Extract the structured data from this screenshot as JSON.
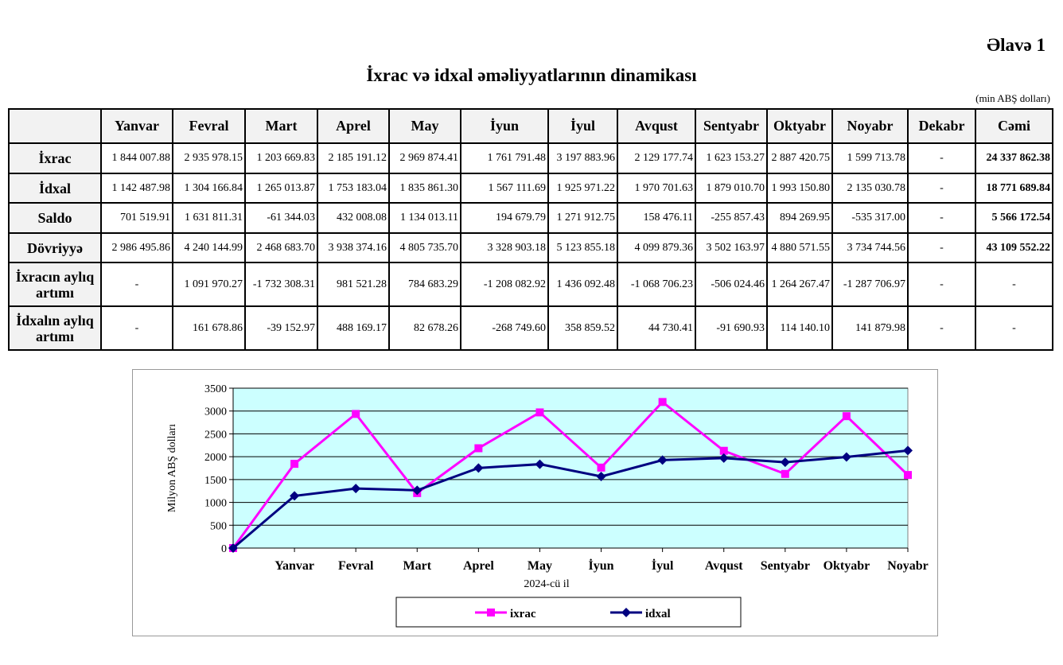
{
  "annex": "Əlavə 1",
  "title": "İxrac və idxal əməliyyatlarının dinamikası",
  "unit": "(min ABŞ dolları)",
  "table": {
    "headers": [
      "",
      "Yanvar",
      "Fevral",
      "Mart",
      "Aprel",
      "May",
      "İyun",
      "İyul",
      "Avqust",
      "Sentyabr",
      "Oktyabr",
      "Noyabr",
      "Dekabr",
      "Cəmi"
    ],
    "rows": [
      {
        "label": "İxrac",
        "cells": [
          "1 844 007.88",
          "2 935 978.15",
          "1 203 669.83",
          "2 185 191.12",
          "2 969 874.41",
          "1 761 791.48",
          "3 197 883.96",
          "2 129 177.74",
          "1 623 153.27",
          "2 887 420.75",
          "1 599 713.78",
          "-",
          "24 337 862.38"
        ]
      },
      {
        "label": "İdxal",
        "cells": [
          "1 142 487.98",
          "1 304 166.84",
          "1 265 013.87",
          "1 753 183.04",
          "1 835 861.30",
          "1 567 111.69",
          "1 925 971.22",
          "1 970 701.63",
          "1 879 010.70",
          "1 993 150.80",
          "2 135 030.78",
          "-",
          "18 771 689.84"
        ]
      },
      {
        "label": "Saldo",
        "cells": [
          "701 519.91",
          "1 631 811.31",
          "-61 344.03",
          "432 008.08",
          "1 134 013.11",
          "194 679.79",
          "1 271 912.75",
          "158 476.11",
          "-255 857.43",
          "894 269.95",
          "-535 317.00",
          "-",
          "5 566 172.54"
        ]
      },
      {
        "label": "Dövriyyə",
        "cells": [
          "2 986 495.86",
          "4 240 144.99",
          "2 468 683.70",
          "3 938 374.16",
          "4 805 735.70",
          "3 328 903.18",
          "5 123 855.18",
          "4 099 879.36",
          "3 502 163.97",
          "4 880 571.55",
          "3 734 744.56",
          "-",
          "43 109 552.22"
        ]
      },
      {
        "label": "İxracın aylıq artımı",
        "cells": [
          "-",
          "1 091 970.27",
          "-1 732 308.31",
          "981 521.28",
          "784 683.29",
          "-1 208 082.92",
          "1 436 092.48",
          "-1 068 706.23",
          "-506 024.46",
          "1 264 267.47",
          "-1 287 706.97",
          "-",
          "-"
        ]
      },
      {
        "label": "İdxalın aylıq artımı",
        "cells": [
          "-",
          "161 678.86",
          "-39 152.97",
          "488 169.17",
          "82 678.26",
          "-268 749.60",
          "358 859.52",
          "44 730.41",
          "-91 690.93",
          "114 140.10",
          "141 879.98",
          "-",
          "-"
        ]
      }
    ]
  },
  "chart_data": {
    "type": "line",
    "categories": [
      "",
      "Yanvar",
      "Fevral",
      "Mart",
      "Aprel",
      "May",
      "İyun",
      "İyul",
      "Avqust",
      "Sentyabr",
      "Oktyabr",
      "Noyabr"
    ],
    "series": [
      {
        "name": "ixrac",
        "color": "#ff00ff",
        "marker": "square",
        "values": [
          0,
          1844.0,
          2936.0,
          1203.7,
          2185.2,
          2969.9,
          1761.8,
          3197.9,
          2129.2,
          1623.2,
          2887.4,
          1599.7
        ]
      },
      {
        "name": "idxal",
        "color": "#000080",
        "marker": "diamond",
        "values": [
          0,
          1142.5,
          1304.2,
          1265.0,
          1753.2,
          1835.9,
          1567.1,
          1926.0,
          1970.7,
          1879.0,
          1993.2,
          2135.0
        ]
      }
    ],
    "ylim": [
      0,
      3500
    ],
    "yticks": [
      0,
      500,
      1000,
      1500,
      2000,
      2500,
      3000,
      3500
    ],
    "xlabel": "2024-cü il",
    "ylabel": "Milyon ABŞ dolları",
    "plot_bg": "#ccffff",
    "grid": true,
    "legend": "bottom"
  }
}
